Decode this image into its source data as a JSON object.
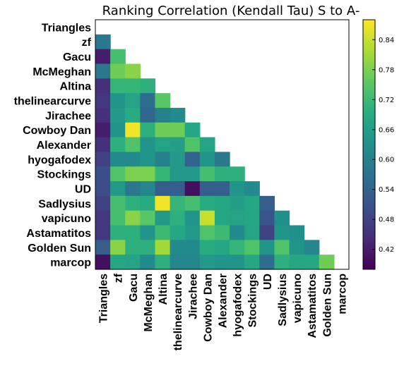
{
  "chart_data": {
    "type": "heatmap",
    "title": "Ranking Correlation (Kendall Tau) S to A-",
    "labels": [
      "Triangles",
      "zf",
      "Gacu",
      "McMeghan",
      "Altina",
      "thelinearcurve",
      "Jirachee",
      "Cowboy Dan",
      "Alexander",
      "hyogafodex",
      "Stockings",
      "UD",
      "Sadlysius",
      "vapicuno",
      "Astamatitos",
      "Golden Sun",
      "marcop"
    ],
    "mask": "lower-triangle (diagonal and upper triangle blank)",
    "values": [
      [],
      [
        0.58
      ],
      [
        0.42,
        0.73
      ],
      [
        0.58,
        0.77,
        0.79
      ],
      [
        0.45,
        0.71,
        0.71,
        0.7
      ],
      [
        0.46,
        0.64,
        0.67,
        0.56,
        0.75
      ],
      [
        0.45,
        0.65,
        0.69,
        0.55,
        0.6,
        0.62
      ],
      [
        0.42,
        0.64,
        0.87,
        0.7,
        0.77,
        0.77,
        0.68
      ],
      [
        0.45,
        0.7,
        0.74,
        0.64,
        0.67,
        0.66,
        0.74,
        0.67
      ],
      [
        0.48,
        0.62,
        0.62,
        0.64,
        0.6,
        0.65,
        0.54,
        0.64,
        0.58
      ],
      [
        0.5,
        0.74,
        0.78,
        0.78,
        0.71,
        0.65,
        0.65,
        0.73,
        0.7,
        0.7
      ],
      [
        0.5,
        0.65,
        0.58,
        0.61,
        0.53,
        0.53,
        0.4,
        0.53,
        0.53,
        0.64,
        0.62
      ],
      [
        0.48,
        0.73,
        0.7,
        0.69,
        0.87,
        0.71,
        0.73,
        0.69,
        0.68,
        0.66,
        0.68,
        0.53
      ],
      [
        0.46,
        0.73,
        0.79,
        0.75,
        0.65,
        0.7,
        0.64,
        0.84,
        0.68,
        0.67,
        0.68,
        0.51,
        0.63
      ],
      [
        0.46,
        0.7,
        0.7,
        0.64,
        0.72,
        0.68,
        0.65,
        0.74,
        0.72,
        0.62,
        0.67,
        0.48,
        0.64,
        0.63
      ],
      [
        0.53,
        0.79,
        0.7,
        0.7,
        0.81,
        0.62,
        0.62,
        0.69,
        0.68,
        0.71,
        0.74,
        0.64,
        0.74,
        0.64,
        0.61
      ],
      [
        0.4,
        0.68,
        0.67,
        0.62,
        0.7,
        0.61,
        0.61,
        0.65,
        0.64,
        0.64,
        0.68,
        0.56,
        0.7,
        0.68,
        0.68,
        0.77
      ]
    ],
    "colormap": "viridis",
    "colorbar": {
      "range": [
        0.38,
        0.88
      ],
      "ticks": [
        "0.42",
        "0.48",
        "0.54",
        "0.60",
        "0.66",
        "0.72",
        "0.78",
        "0.84"
      ]
    }
  }
}
